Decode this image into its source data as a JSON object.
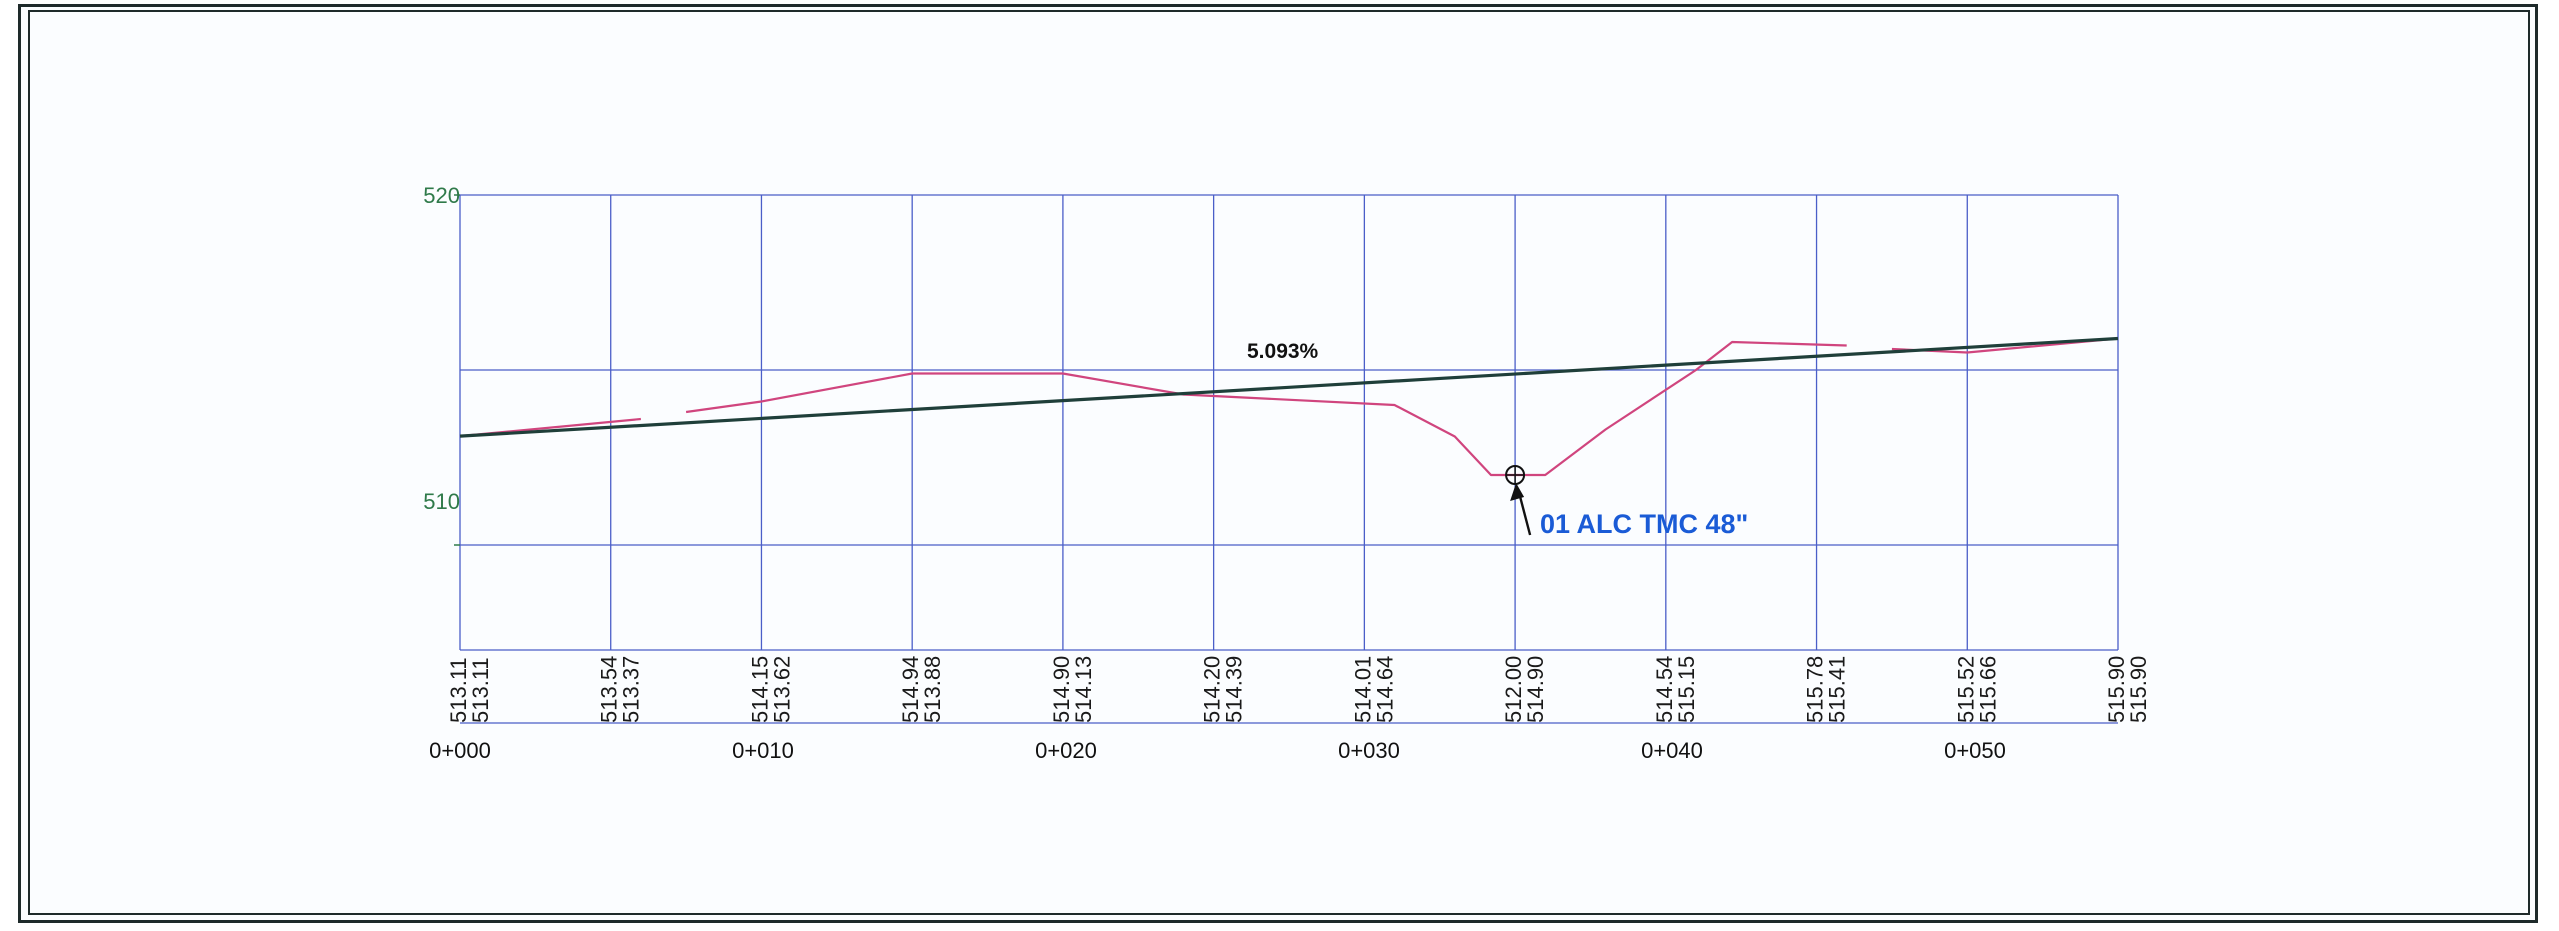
{
  "profile": {
    "elevation_labels": [
      "520",
      "510"
    ],
    "station_labels": [
      "0+000",
      "0+010",
      "0+020",
      "0+030",
      "0+040",
      "0+050"
    ],
    "grade_label": "5.093%",
    "structure_label": "01 ALC TMC 48\"",
    "table_rows": [
      [
        "513.11",
        "513.11"
      ],
      [
        "513.54",
        "513.37"
      ],
      [
        "514.15",
        "513.62"
      ],
      [
        "514.94",
        "513.88"
      ],
      [
        "514.90",
        "514.13"
      ],
      [
        "514.20",
        "514.39"
      ],
      [
        "514.01",
        "514.64"
      ],
      [
        "512.00",
        "514.90"
      ],
      [
        "514.54",
        "515.15"
      ],
      [
        "515.78",
        "515.41"
      ],
      [
        "515.52",
        "515.66"
      ],
      [
        "515.90",
        "515.90"
      ]
    ],
    "colors": {
      "grid": "#4a5ec8",
      "elevation_label": "#2f7a4a",
      "ground_line": "#d0457e",
      "design_line": "#1f3f3a",
      "structure_label": "#1a5bd6"
    }
  },
  "chart_data": {
    "type": "line",
    "x_axis": "station",
    "xlim": [
      0,
      55
    ],
    "ylim": [
      507,
      520
    ],
    "yticks": [
      510,
      520
    ],
    "xticks": [
      0,
      10,
      20,
      30,
      40,
      50
    ],
    "series": [
      {
        "role": "existing-ground",
        "segments": [
          [
            [
              0,
              513.11
            ],
            [
              6,
              513.6
            ]
          ],
          [
            [
              7.5,
              513.8
            ],
            [
              10,
              514.1
            ],
            [
              15,
              514.9
            ],
            [
              20,
              514.9
            ],
            [
              24,
              514.3
            ],
            [
              31,
              514.0
            ],
            [
              33,
              513.1
            ],
            [
              34.2,
              512.0
            ],
            [
              36,
              512.0
            ],
            [
              38,
              513.3
            ],
            [
              41,
              515.0
            ],
            [
              42.2,
              515.8
            ],
            [
              46,
              515.7
            ]
          ],
          [
            [
              47.5,
              515.6
            ],
            [
              50,
              515.5
            ],
            [
              55,
              515.9
            ]
          ]
        ]
      },
      {
        "role": "design-grade",
        "grade_percent": 5.093,
        "points": [
          [
            0,
            513.11
          ],
          [
            55,
            515.9
          ]
        ]
      }
    ],
    "structure": {
      "station": 35,
      "elevation": 512.0
    }
  }
}
